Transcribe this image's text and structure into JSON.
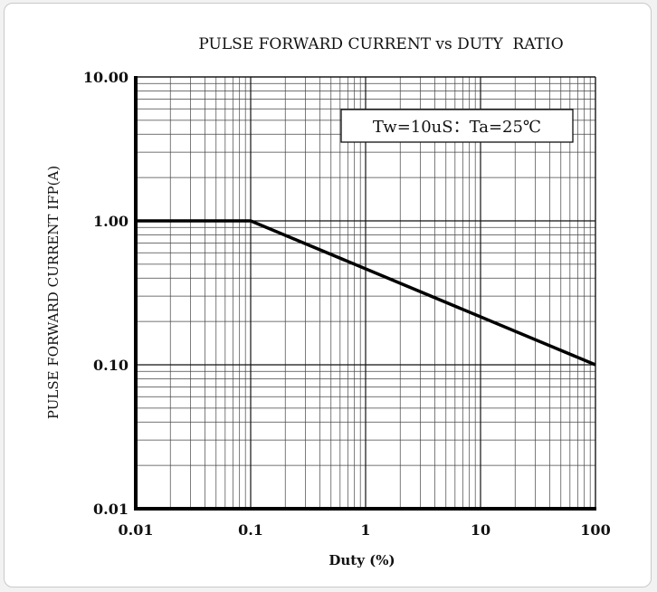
{
  "chart_data": {
    "type": "line",
    "title": "PULSE FORWARD CURRENT vs DUTY  RATIO",
    "xlabel": "Duty (%)",
    "ylabel": "PULSE FORWARD CURRENT IFP(A)",
    "x_scale": "log",
    "y_scale": "log",
    "xlim": [
      0.01,
      100
    ],
    "ylim": [
      0.01,
      10
    ],
    "x_ticks": [
      0.01,
      0.1,
      1,
      10,
      100
    ],
    "x_tick_labels": [
      "0.01",
      "0.1",
      "1",
      "10",
      "100"
    ],
    "y_ticks": [
      0.01,
      0.1,
      1,
      10
    ],
    "y_tick_labels": [
      "0.01",
      "0.10",
      "1.00",
      "10.00"
    ],
    "grid": true,
    "annotation": "Tw=10uS：Ta=25℃",
    "series": [
      {
        "x": [
          0.01,
          0.1,
          100
        ],
        "y": [
          1.0,
          1.0,
          0.1
        ]
      }
    ],
    "line_color": "#000000"
  }
}
